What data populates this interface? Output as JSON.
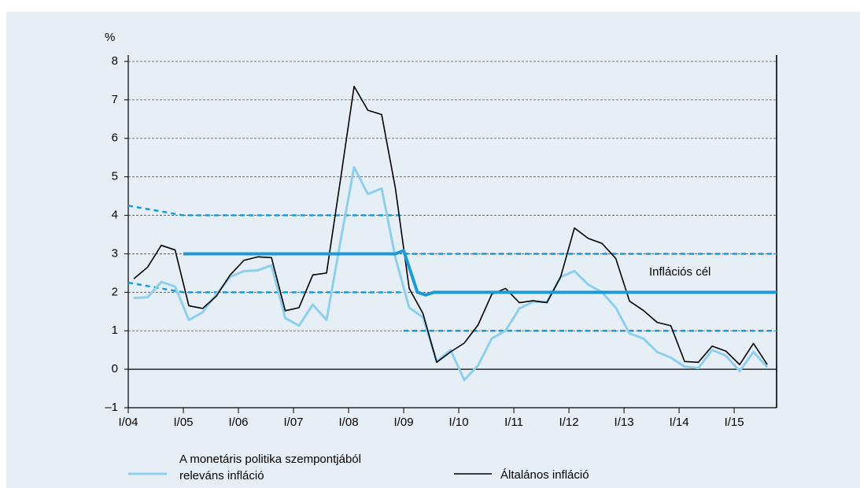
{
  "chart_data": {
    "type": "line",
    "ylabel": "%",
    "xlim": [
      2004,
      2015.77
    ],
    "ylim": [
      -1,
      8
    ],
    "yticks": [
      {
        "value": -1,
        "label": "–1"
      },
      0,
      1,
      2,
      3,
      4,
      5,
      6,
      7,
      8
    ],
    "xticks": [
      {
        "value": 2004,
        "label": "I/04"
      },
      {
        "value": 2005,
        "label": "I/05"
      },
      {
        "value": 2006,
        "label": "I/06"
      },
      {
        "value": 2007,
        "label": "I/07"
      },
      {
        "value": 2008,
        "label": "I/08"
      },
      {
        "value": 2009,
        "label": "I/09"
      },
      {
        "value": 2010,
        "label": "I/10"
      },
      {
        "value": 2011,
        "label": "I/11"
      },
      {
        "value": 2012,
        "label": "I/12"
      },
      {
        "value": 2013,
        "label": "I/13"
      },
      {
        "value": 2014,
        "label": "I/14"
      },
      {
        "value": 2015,
        "label": "I/15"
      }
    ],
    "grid": true,
    "series": [
      {
        "name": [
          "A monetáris politika szempontjából",
          "releváns infláció"
        ],
        "color": "#8fcfee",
        "width": 3,
        "x": [
          2004.1,
          2004.35,
          2004.6,
          2004.85,
          2005.1,
          2005.35,
          2005.6,
          2005.85,
          2006.1,
          2006.35,
          2006.6,
          2006.85,
          2007.1,
          2007.35,
          2007.6,
          2007.85,
          2008.1,
          2008.35,
          2008.6,
          2008.85,
          2009.1,
          2009.35,
          2009.6,
          2009.85,
          2010.1,
          2010.35,
          2010.6,
          2010.85,
          2011.1,
          2011.35,
          2011.6,
          2011.85,
          2012.1,
          2012.35,
          2012.6,
          2012.85,
          2013.1,
          2013.35,
          2013.6,
          2013.85,
          2014.1,
          2014.35,
          2014.6,
          2014.85,
          2015.1,
          2015.35,
          2015.6
        ],
        "values": [
          1.85,
          1.87,
          2.27,
          2.15,
          1.28,
          1.48,
          1.95,
          2.4,
          2.55,
          2.57,
          2.7,
          1.33,
          1.13,
          1.68,
          1.28,
          3.3,
          5.25,
          4.55,
          4.7,
          2.9,
          1.6,
          1.35,
          0.2,
          0.5,
          -0.28,
          0.1,
          0.8,
          1.0,
          1.58,
          1.75,
          1.75,
          2.4,
          2.55,
          2.2,
          2.0,
          1.6,
          0.93,
          0.8,
          0.45,
          0.3,
          0.07,
          0.03,
          0.5,
          0.35,
          -0.05,
          0.45,
          0.05
        ]
      },
      {
        "name": "Általános infláció",
        "color": "#000000",
        "width": 1.6,
        "x": [
          2004.1,
          2004.35,
          2004.6,
          2004.85,
          2005.1,
          2005.35,
          2005.6,
          2005.85,
          2006.1,
          2006.35,
          2006.6,
          2006.85,
          2007.1,
          2007.35,
          2007.6,
          2007.85,
          2008.1,
          2008.35,
          2008.6,
          2008.85,
          2009.1,
          2009.35,
          2009.6,
          2009.85,
          2010.1,
          2010.35,
          2010.6,
          2010.85,
          2011.1,
          2011.35,
          2011.6,
          2011.85,
          2012.1,
          2012.35,
          2012.6,
          2012.85,
          2013.1,
          2013.35,
          2013.6,
          2013.85,
          2014.1,
          2014.35,
          2014.6,
          2014.85,
          2015.1,
          2015.35,
          2015.6
        ],
        "values": [
          2.35,
          2.65,
          3.22,
          3.1,
          1.65,
          1.58,
          1.9,
          2.45,
          2.83,
          2.92,
          2.9,
          1.52,
          1.6,
          2.45,
          2.5,
          4.9,
          7.35,
          6.73,
          6.62,
          4.7,
          2.1,
          1.45,
          0.18,
          0.45,
          0.68,
          1.15,
          1.95,
          2.1,
          1.73,
          1.78,
          1.73,
          2.4,
          3.67,
          3.4,
          3.27,
          2.88,
          1.77,
          1.53,
          1.22,
          1.13,
          0.2,
          0.18,
          0.6,
          0.47,
          0.12,
          0.67,
          0.12
        ]
      },
      {
        "name": "Inflációs cél",
        "color": "#1d9ad6",
        "width": 4,
        "x": [
          2005,
          2008.85,
          2009.0,
          2009.25,
          2009.4,
          2009.55,
          2015.77
        ],
        "values": [
          3,
          3,
          3.08,
          2.0,
          1.93,
          2.0,
          2.0
        ]
      }
    ],
    "bands": [
      {
        "color": "#1d9ad6",
        "x": [
          2004,
          2005,
          2009,
          2009,
          2009,
          2015.77
        ],
        "values": [
          4.25,
          4,
          4,
          null,
          3,
          3
        ]
      },
      {
        "color": "#1d9ad6",
        "x": [
          2004,
          2005,
          2009,
          2009,
          2009,
          2015.77
        ],
        "values": [
          2.25,
          2,
          2,
          null,
          1,
          1
        ]
      }
    ]
  }
}
